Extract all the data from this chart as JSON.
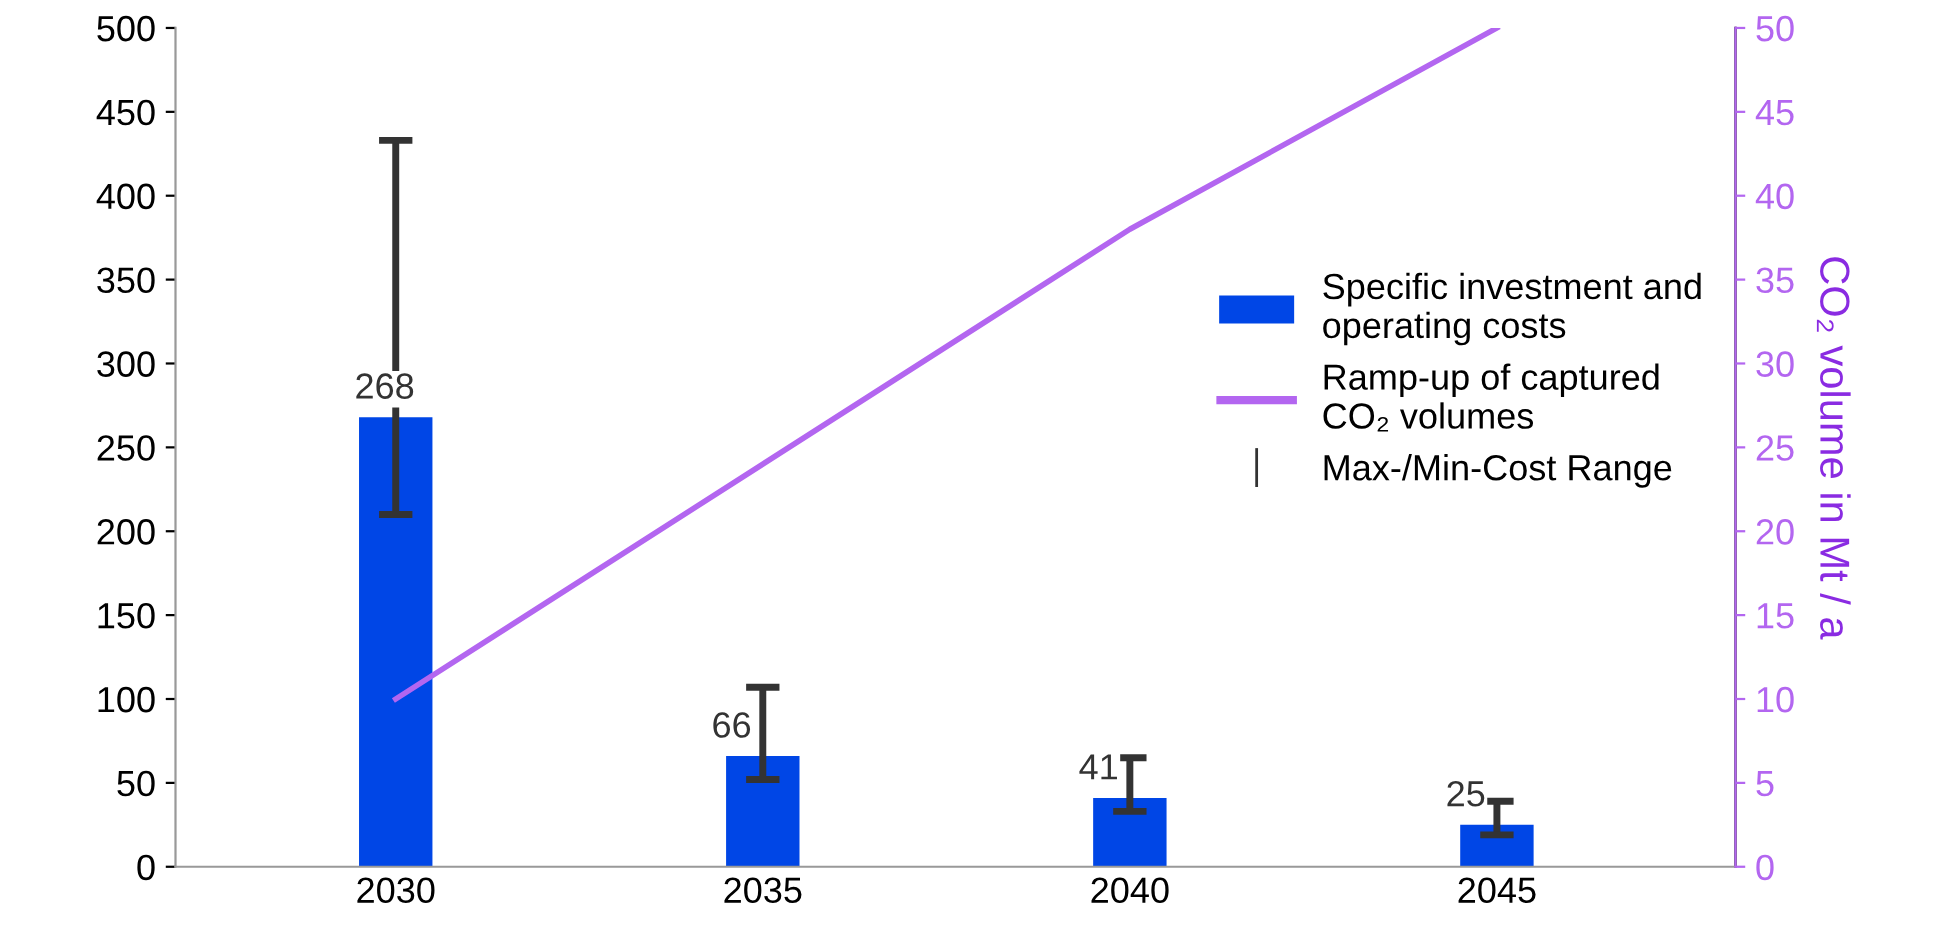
{
  "chart_data": {
    "type": "bar",
    "categories": [
      "2030",
      "2035",
      "2040",
      "2045"
    ],
    "y2label": "CO₂ volume in Mt / a",
    "ylim": [
      0,
      500
    ],
    "yticks": [
      0,
      50,
      100,
      150,
      200,
      250,
      300,
      350,
      400,
      450,
      500
    ],
    "y2lim": [
      0,
      50
    ],
    "y2ticks": [
      0,
      5,
      10,
      15,
      20,
      25,
      30,
      35,
      40,
      45,
      50
    ],
    "series": [
      {
        "name": "Specific investment and\noperating costs",
        "color": "#0046e6",
        "values": [
          268,
          66,
          41,
          25
        ],
        "value_labels": [
          "268",
          "66",
          "41",
          "25"
        ],
        "errors": [
          [
            210,
            433
          ],
          [
            52,
            107
          ],
          [
            33,
            65
          ],
          [
            19,
            39
          ]
        ]
      },
      {
        "name": "Ramp-up of captured\nCO₂ volumes",
        "type": "line",
        "axis": "y2",
        "color": "#b366f0",
        "values": [
          10,
          24,
          38,
          50
        ]
      }
    ],
    "annotations": [
      "Max-/Min-Cost Range"
    ],
    "legend": "right",
    "grid": false
  }
}
